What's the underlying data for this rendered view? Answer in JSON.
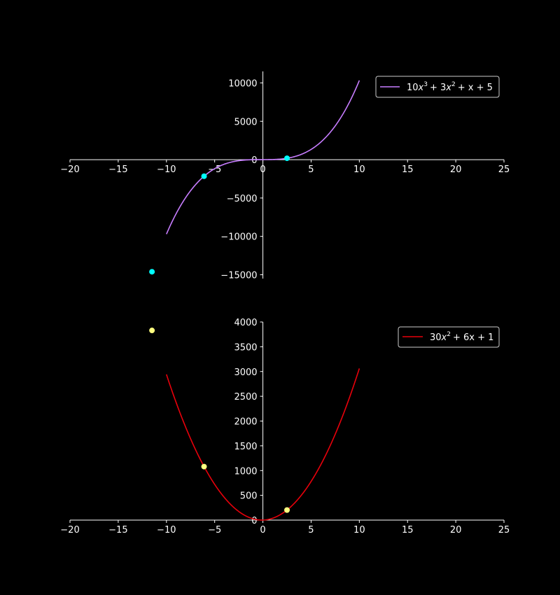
{
  "chart_data": [
    {
      "type": "line",
      "title": "",
      "xlabel": "",
      "ylabel": "",
      "xlim": [
        -20,
        25
      ],
      "ylim": [
        -15500,
        11500
      ],
      "x_ticks": [
        "−20",
        "−15",
        "−10",
        "−5",
        "0",
        "5",
        "10",
        "15",
        "20",
        "25"
      ],
      "x_tick_values": [
        -20,
        -15,
        -10,
        -5,
        0,
        5,
        10,
        15,
        20,
        25
      ],
      "y_ticks": [
        "10000",
        "5000",
        "0",
        "−5000",
        "−10000",
        "−15000"
      ],
      "y_tick_values": [
        10000,
        5000,
        0,
        -5000,
        -10000,
        -15000
      ],
      "x_tick_zero_label": "0",
      "legend_position": "upper-right",
      "legend_parts": {
        "c1": "10",
        "e1": "3",
        "c2": "+ 3",
        "e2": "2",
        "rest": "+ x + 5"
      },
      "series": [
        {
          "name": "10x^3 + 3x^2 + x + 5",
          "function": "cubic",
          "domain": [
            -10,
            10
          ],
          "color": "#c77dff"
        }
      ],
      "points": [
        {
          "x": -11.5,
          "y": -14605
        },
        {
          "x": -6.1,
          "y": -2160
        },
        {
          "x": 2.5,
          "y": 183
        }
      ],
      "point_color": "#00ffff"
    },
    {
      "type": "line",
      "title": "",
      "xlabel": "",
      "ylabel": "",
      "xlim": [
        -20,
        25
      ],
      "ylim": [
        0,
        4000
      ],
      "x_ticks": [
        "−20",
        "−15",
        "−10",
        "−5",
        "0",
        "5",
        "10",
        "15",
        "20",
        "25"
      ],
      "x_tick_values": [
        -20,
        -15,
        -10,
        -5,
        0,
        5,
        10,
        15,
        20,
        25
      ],
      "y_ticks": [
        "4000",
        "3500",
        "3000",
        "2500",
        "2000",
        "1500",
        "1000",
        "500",
        "0"
      ],
      "y_tick_values": [
        4000,
        3500,
        3000,
        2500,
        2000,
        1500,
        1000,
        500,
        0
      ],
      "legend_position": "upper-right",
      "legend_parts": {
        "c1": "30",
        "e1": "2",
        "rest": "+ 6x + 1"
      },
      "series": [
        {
          "name": "30x^2 + 6x + 1",
          "function": "quadratic",
          "domain": [
            -10,
            10
          ],
          "color": "#e8000b"
        }
      ],
      "points": [
        {
          "x": -11.5,
          "y": 3830
        },
        {
          "x": -6.1,
          "y": 1080
        },
        {
          "x": 2.5,
          "y": 203
        }
      ],
      "point_color": "#ffff80"
    }
  ]
}
